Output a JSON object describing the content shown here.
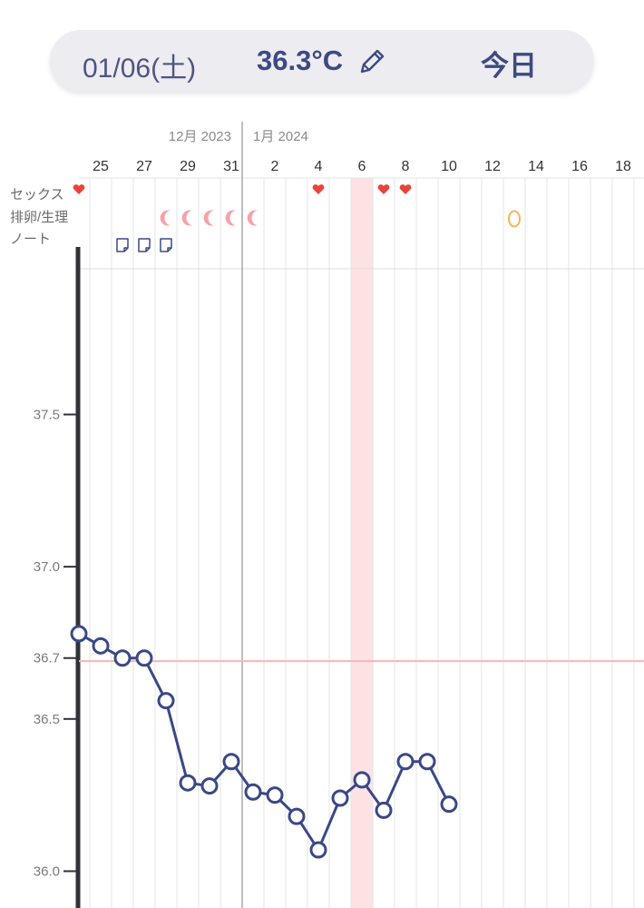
{
  "header": {
    "date": "01/06(土)",
    "temperature": "36.3°C",
    "edit_icon": "pencil-icon",
    "today_label": "今日"
  },
  "chart_data": {
    "type": "line",
    "months": [
      "12月 2023",
      "1月 2024"
    ],
    "x_tick_labels": [
      "25",
      "27",
      "29",
      "31",
      "2",
      "4",
      "6",
      "8",
      "10",
      "12",
      "14",
      "16",
      "18"
    ],
    "dates": [
      "2023-12-24",
      "2023-12-25",
      "2023-12-26",
      "2023-12-27",
      "2023-12-28",
      "2023-12-29",
      "2023-12-30",
      "2023-12-31",
      "2024-01-01",
      "2024-01-02",
      "2024-01-03",
      "2024-01-04",
      "2024-01-05",
      "2024-01-06",
      "2024-01-07",
      "2024-01-08",
      "2024-01-09",
      "2024-01-10"
    ],
    "values": [
      36.78,
      36.74,
      36.7,
      36.7,
      36.56,
      36.29,
      36.28,
      36.36,
      36.26,
      36.25,
      36.18,
      36.07,
      36.24,
      36.3,
      36.2,
      36.36,
      36.36,
      36.22
    ],
    "y_tick_labels": [
      "37.5",
      "37.0",
      "36.7",
      "36.5",
      "36.0"
    ],
    "ylim": [
      35.95,
      37.95
    ],
    "coverline": 36.69,
    "selected_date": "2024-01-06",
    "row_labels": [
      "セックス",
      "排卵/生理",
      "ノート"
    ],
    "sex_dates": [
      "2023-12-24",
      "2024-01-04",
      "2024-01-07",
      "2024-01-08"
    ],
    "period_dates": [
      "2023-12-28",
      "2023-12-29",
      "2023-12-30",
      "2023-12-31",
      "2024-01-01"
    ],
    "ovulation_dates": [
      "2024-01-13"
    ],
    "note_dates": [
      "2023-12-26",
      "2023-12-27",
      "2023-12-28"
    ],
    "colors": {
      "line": "#3b4885",
      "coverline": "#f4b6ba",
      "selected": "#fde2e4",
      "heart": "#e8443a",
      "period": "#f4a3a8",
      "ovulation": "#f5b55a",
      "note": "#3b4885"
    }
  }
}
